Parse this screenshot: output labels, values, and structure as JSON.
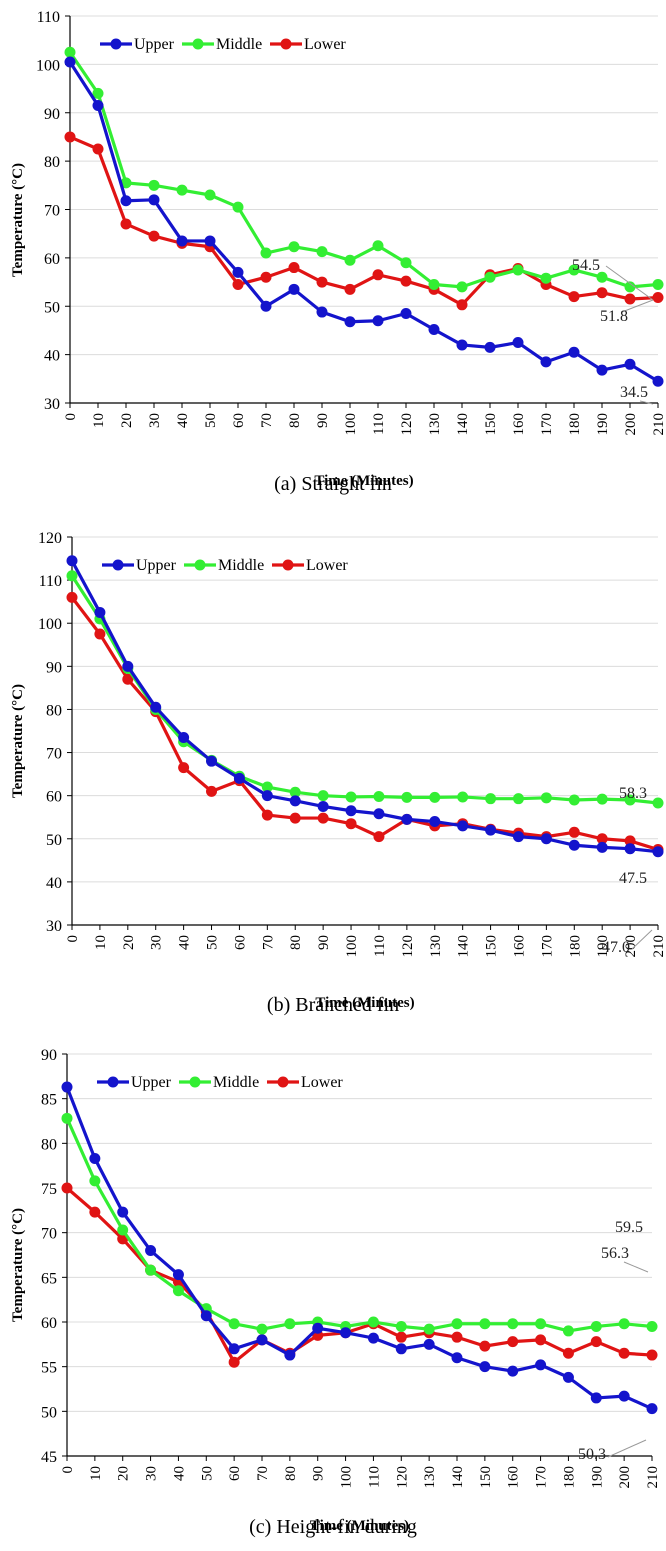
{
  "chart_data": [
    {
      "type": "line",
      "caption": "(a) Straight fin",
      "xlabel": "Time (Minutes)",
      "ylabel": "Temperature (°C)",
      "x": [
        0,
        10,
        20,
        30,
        40,
        50,
        60,
        70,
        80,
        90,
        100,
        110,
        120,
        130,
        140,
        150,
        160,
        170,
        180,
        190,
        200,
        210
      ],
      "ylim": [
        30,
        110
      ],
      "yticks": [
        30,
        40,
        50,
        60,
        70,
        80,
        90,
        100,
        110
      ],
      "grid": true,
      "legend_position": "top-left",
      "series": [
        {
          "name": "Upper",
          "color": "#1414cc",
          "values": [
            100.5,
            91.5,
            71.8,
            72.0,
            63.5,
            63.5,
            57.0,
            50.0,
            53.5,
            48.8,
            46.8,
            47.0,
            48.5,
            45.2,
            42.0,
            41.5,
            42.5,
            38.5,
            40.5,
            36.8,
            38.0,
            34.5
          ]
        },
        {
          "name": "Middle",
          "color": "#33ee33",
          "values": [
            102.5,
            94.0,
            75.5,
            75.0,
            74.0,
            73.0,
            70.5,
            61.0,
            62.3,
            61.3,
            59.5,
            62.5,
            59.0,
            54.5,
            54.0,
            56.0,
            57.5,
            55.8,
            57.5,
            56.0,
            54.0,
            54.5
          ]
        },
        {
          "name": "Lower",
          "color": "#e01414",
          "values": [
            85.0,
            82.5,
            67.0,
            64.5,
            63.0,
            62.3,
            54.5,
            56.0,
            58.0,
            55.0,
            53.5,
            56.5,
            55.2,
            53.5,
            50.3,
            56.5,
            57.8,
            54.5,
            52.0,
            52.8,
            51.5,
            51.8
          ]
        }
      ],
      "annotations": [
        "54.5",
        "51.8",
        "34.5"
      ]
    },
    {
      "type": "line",
      "caption": "(b) Branched fin",
      "xlabel": "Time (Minutes)",
      "ylabel": "Temperature (°C)",
      "x": [
        0,
        10,
        20,
        30,
        40,
        50,
        60,
        70,
        80,
        90,
        100,
        110,
        120,
        130,
        140,
        150,
        160,
        170,
        180,
        190,
        200,
        210
      ],
      "ylim": [
        30,
        120
      ],
      "yticks": [
        30,
        40,
        50,
        60,
        70,
        80,
        90,
        100,
        110,
        120
      ],
      "grid": true,
      "legend_position": "top-left",
      "series": [
        {
          "name": "Upper",
          "color": "#1414cc",
          "values": [
            114.5,
            102.5,
            90.0,
            80.5,
            73.5,
            68.0,
            64.0,
            60.0,
            58.8,
            57.5,
            56.5,
            55.8,
            54.5,
            54.0,
            53.0,
            52.0,
            50.5,
            50.0,
            48.5,
            48.0,
            47.7,
            47.0
          ]
        },
        {
          "name": "Middle",
          "color": "#33ee33",
          "values": [
            111.0,
            101.0,
            89.5,
            80.0,
            72.5,
            68.2,
            64.5,
            62.0,
            60.8,
            60.0,
            59.7,
            59.8,
            59.6,
            59.6,
            59.7,
            59.3,
            59.3,
            59.5,
            59.0,
            59.2,
            59.0,
            58.3
          ]
        },
        {
          "name": "Lower",
          "color": "#e01414",
          "values": [
            106.0,
            97.5,
            87.0,
            79.5,
            66.5,
            61.0,
            63.5,
            55.5,
            54.8,
            54.8,
            53.5,
            50.5,
            54.5,
            53.0,
            53.5,
            52.2,
            51.3,
            50.5,
            51.5,
            50.0,
            49.5,
            47.5
          ]
        }
      ],
      "annotations": [
        "58.3",
        "47.5",
        "47.0"
      ]
    },
    {
      "type": "line",
      "caption": "(c) Height-fin during",
      "xlabel": "Time (Minutes)",
      "ylabel": "Temperature (°C)",
      "x": [
        0,
        10,
        20,
        30,
        40,
        50,
        60,
        70,
        80,
        90,
        100,
        110,
        120,
        130,
        140,
        150,
        160,
        170,
        180,
        190,
        200,
        210
      ],
      "ylim": [
        45,
        90
      ],
      "yticks": [
        45,
        50,
        55,
        60,
        65,
        70,
        75,
        80,
        85,
        90
      ],
      "grid": true,
      "legend_position": "top-left",
      "series": [
        {
          "name": "Upper",
          "color": "#1414cc",
          "values": [
            86.3,
            78.3,
            72.3,
            68.0,
            65.3,
            60.7,
            57.0,
            58.0,
            56.3,
            59.3,
            58.8,
            58.2,
            57.0,
            57.5,
            56.0,
            55.0,
            54.5,
            55.2,
            53.8,
            51.5,
            51.7,
            50.3
          ]
        },
        {
          "name": "Middle",
          "color": "#33ee33",
          "values": [
            82.8,
            75.8,
            70.3,
            65.8,
            63.5,
            61.5,
            59.8,
            59.2,
            59.8,
            60.0,
            59.5,
            60.0,
            59.5,
            59.2,
            59.8,
            59.8,
            59.8,
            59.8,
            59.0,
            59.5,
            59.8,
            59.5
          ]
        },
        {
          "name": "Lower",
          "color": "#e01414",
          "values": [
            75.0,
            72.3,
            69.3,
            65.8,
            64.5,
            61.2,
            55.5,
            58.0,
            56.5,
            58.5,
            58.8,
            59.8,
            58.3,
            58.8,
            58.3,
            57.3,
            57.8,
            58.0,
            56.5,
            57.8,
            56.5,
            56.3
          ]
        }
      ],
      "annotations": [
        "59.5",
        "56.3",
        "50.3"
      ]
    }
  ]
}
